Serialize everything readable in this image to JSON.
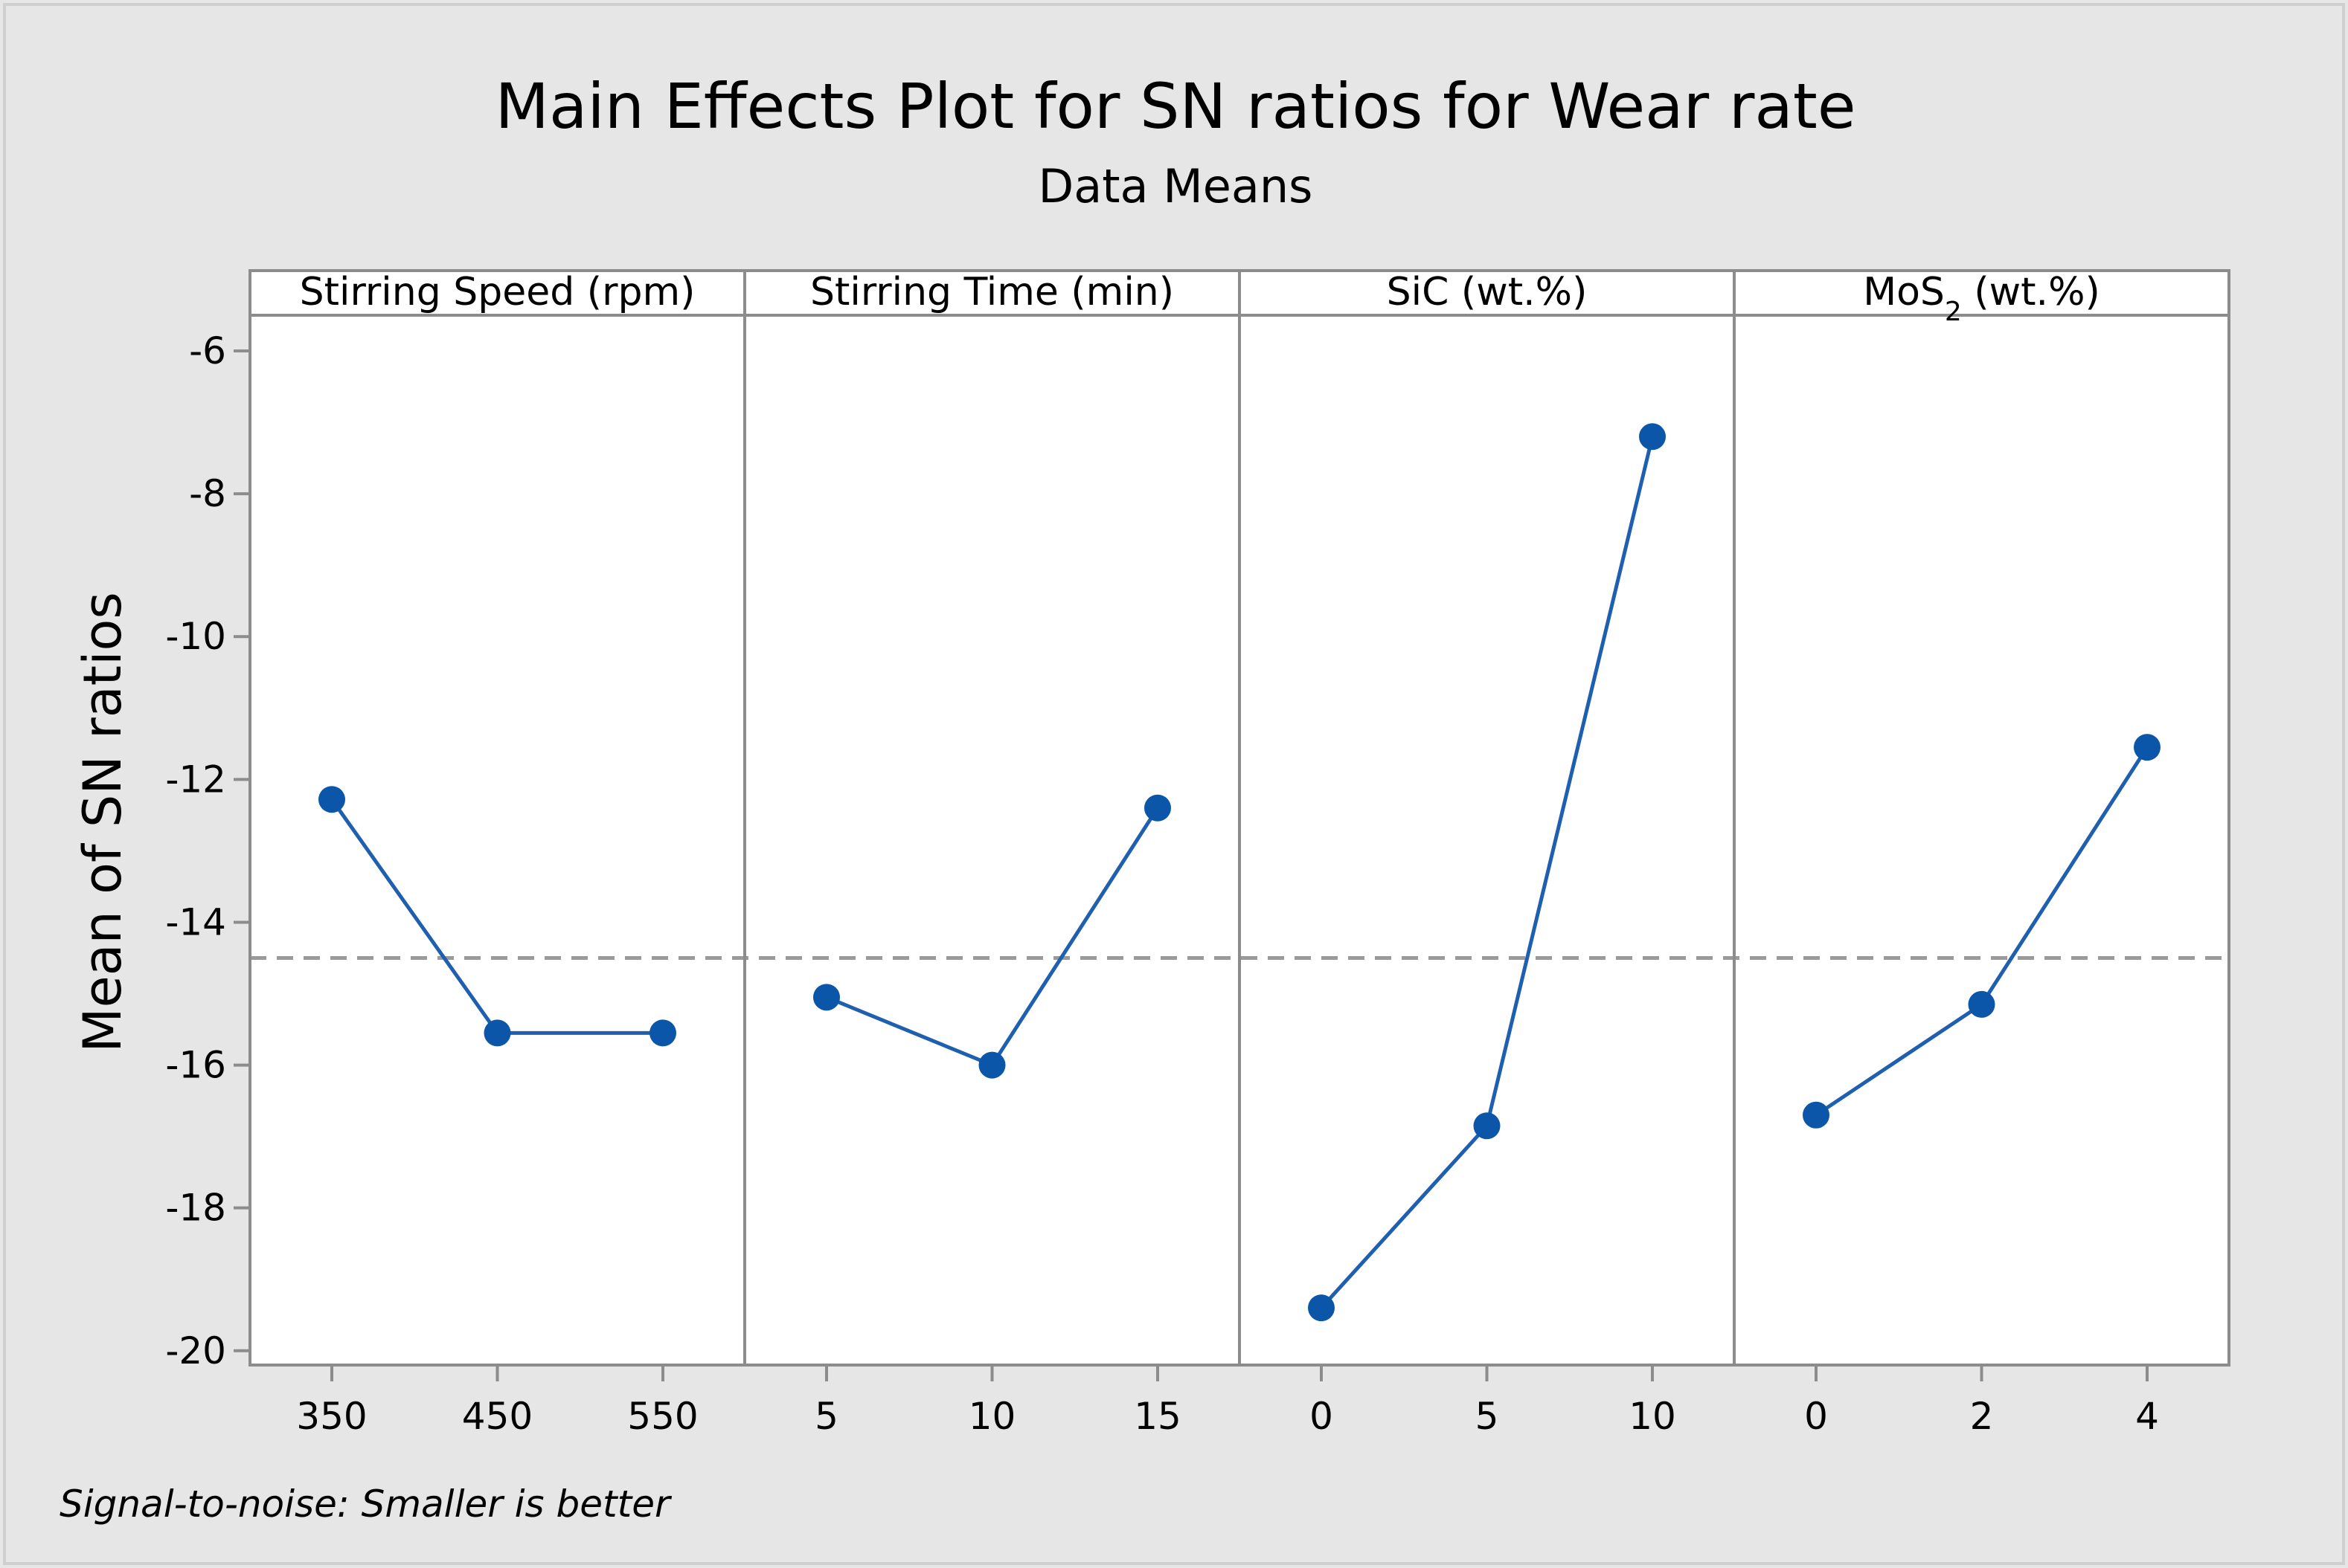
{
  "chart_data": {
    "type": "line",
    "title": "Main Effects Plot for SN ratios for Wear rate",
    "subtitle": "Data Means",
    "ylabel": "Mean of SN ratios",
    "ylim": [
      -20.2,
      -5.5
    ],
    "yticks": [
      -6,
      -8,
      -10,
      -12,
      -14,
      -16,
      -18,
      -20
    ],
    "ytick_labels": [
      "-6",
      "-8",
      "-10",
      "-12",
      "-14",
      "-16",
      "-18",
      "-20"
    ],
    "reference_line": -14.5,
    "footnote": "Signal-to-noise: Smaller is better",
    "colors": {
      "line": "#1f5fb0",
      "point": "#0b56a8",
      "reference": "#9a9a9a",
      "frame": "#8c8c8c",
      "background": "#e6e6e6",
      "plot_background": "#ffffff",
      "text": "#000000"
    },
    "panels": [
      {
        "name": "stirring-speed",
        "header": "Stirring Speed  (rpm)",
        "header_sub": "",
        "header_suffix": "",
        "categories": [
          "350",
          "450",
          "550"
        ],
        "values": [
          -12.28,
          -15.55,
          -15.55
        ]
      },
      {
        "name": "stirring-time",
        "header": "Stirring Time (min)",
        "header_sub": "",
        "header_suffix": "",
        "categories": [
          "5",
          "10",
          "15"
        ],
        "values": [
          -15.05,
          -16.0,
          -12.4
        ]
      },
      {
        "name": "sic",
        "header": "SiC (wt.%)",
        "header_sub": "",
        "header_suffix": "",
        "categories": [
          "0",
          "5",
          "10"
        ],
        "values": [
          -19.4,
          -16.85,
          -7.2
        ]
      },
      {
        "name": "mos2",
        "header": "MoS",
        "header_sub": "2",
        "header_suffix": " (wt.%)",
        "categories": [
          "0",
          "2",
          "4"
        ],
        "values": [
          -16.7,
          -15.15,
          -11.55
        ]
      }
    ]
  }
}
